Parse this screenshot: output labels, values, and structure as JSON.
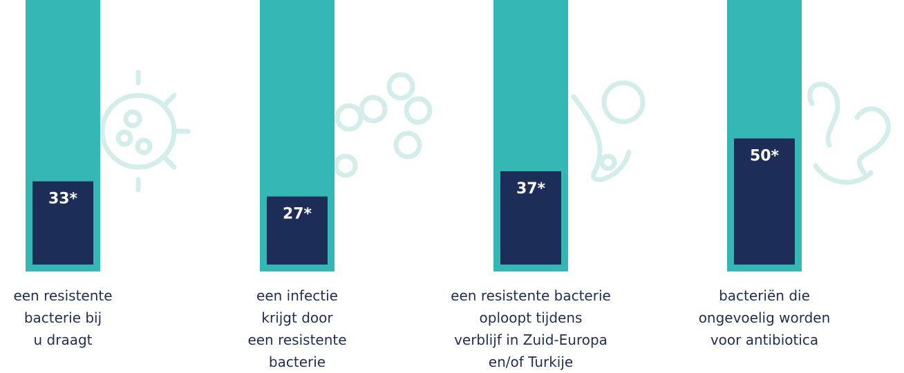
{
  "chart_data": {
    "type": "bar",
    "categories": [
      "een resistente\nbacterie bij\nu draagt",
      "een infectie\nkrijgt door\neen resistente\nbacterie",
      "een resistente bacterie\noploopt tijdens\nverblijf in Zuid-Europa\nen/of Turkije",
      "bacteriën die\nongevoelig worden\nvoor antibiotica"
    ],
    "values": [
      33,
      27,
      37,
      50
    ],
    "value_labels": [
      "33*",
      "27*",
      "37*",
      "50*"
    ],
    "color": "#1c2d57",
    "ylim": [
      0,
      100
    ]
  }
}
